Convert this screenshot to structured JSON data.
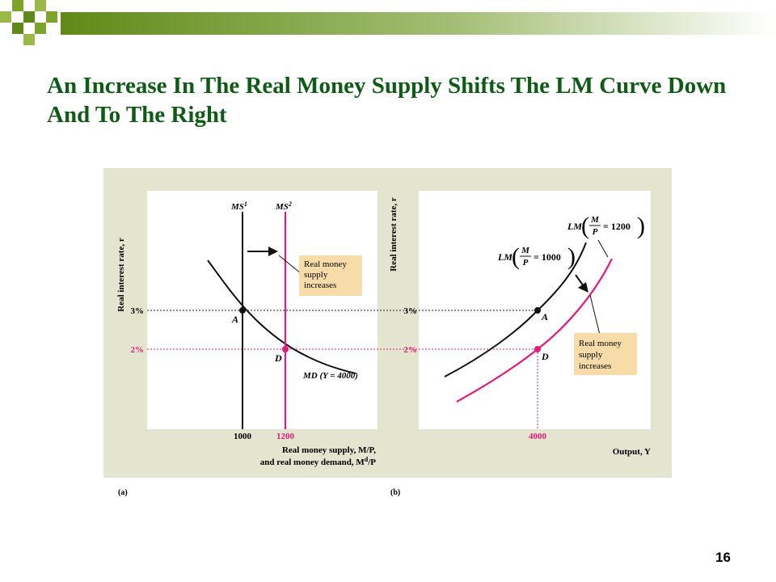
{
  "slide": {
    "title": "An Increase In The Real Money Supply Shifts The LM Curve Down And To The Right",
    "page_number": "16",
    "accent_colors": {
      "title_green": "#0d5b14",
      "bar_green": "#7ba428",
      "panel_bg": "#e3e5cf",
      "callout": "#f7dcaa",
      "shift_color": "#e5197a"
    }
  },
  "panel_a": {
    "label": "(a)",
    "y_axis_label": "Real interest rate, r",
    "x_axis_label_line1": "Real money supply, M/P,",
    "x_axis_label_line2_prefix": "and real money demand, M",
    "x_axis_label_line2_sup": "d",
    "x_axis_label_line2_suffix": "/P",
    "ms1_label": "MS",
    "ms1_sup": "1",
    "ms2_label": "MS",
    "ms2_sup": "2",
    "md_label": "MD (Y = 4000)",
    "callout_lines": [
      "Real money",
      "supply",
      "increases"
    ],
    "point_a": "A",
    "point_d": "D",
    "tick_3": "3%",
    "tick_2": "2%",
    "tick_1000": "1000",
    "tick_1200": "1200"
  },
  "panel_b": {
    "label": "(b)",
    "y_axis_label": "Real interest rate, r",
    "x_axis_label": "Output, Y",
    "lm1_label": "LM",
    "lm1_value": "= 1000",
    "lm2_label": "LM",
    "lm2_value": "= 1200",
    "frac_num": "M",
    "frac_den": "P",
    "callout_lines": [
      "Real money",
      "supply",
      "increases"
    ],
    "point_a": "A",
    "point_d": "D",
    "tick_3": "3%",
    "tick_2": "2%",
    "tick_4000": "4000"
  }
}
